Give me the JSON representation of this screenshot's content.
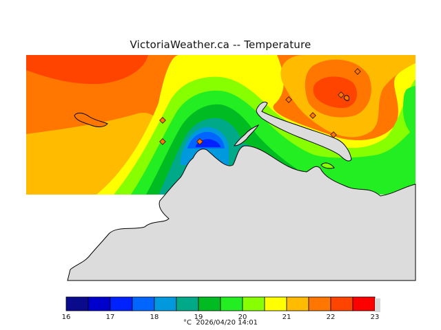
{
  "title": "VictoriaWeather.ca -- Temperature",
  "footer": {
    "unit": "°C",
    "timestamp": "2026/04/20 14:01"
  },
  "legend": {
    "ticks": [
      "16",
      "17",
      "18",
      "19",
      "20",
      "21",
      "22",
      "23"
    ],
    "colors": [
      "#0a0a8c",
      "#0000cc",
      "#0022ff",
      "#0066ff",
      "#0099dd",
      "#00aa88",
      "#00bb22",
      "#22ee22",
      "#88ff00",
      "#ffff00",
      "#ffbb00",
      "#ff7700",
      "#ff4400",
      "#ff0000"
    ]
  },
  "colors": {
    "land": "#dcdcdc",
    "background": "#ffffff"
  },
  "stations_count_visible": 8
}
